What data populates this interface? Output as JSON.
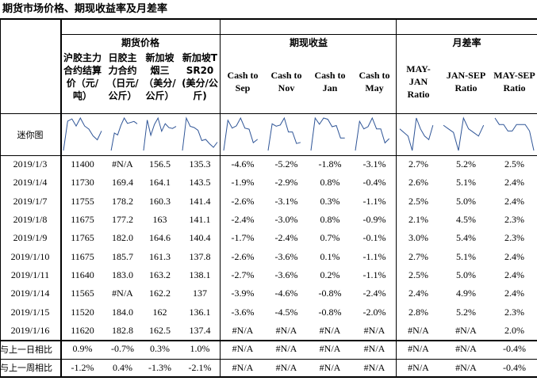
{
  "title": "期货市场价格、期现收益率及月差率",
  "groups": {
    "futures": "期货价格",
    "basis": "期现收益",
    "spread": "月差率"
  },
  "columns": [
    "沪胶主力合约结算价（元/吨）",
    "日胶主力合约（日元/公斤）",
    "新加坡烟三（美分/公斤）",
    "新加坡TSR20(美分/公斤)",
    "Cash to Sep",
    "Cash to Nov",
    "Cash to Jan",
    "Cash to May",
    "MAY-JAN Ratio",
    "JAN-SEP Ratio",
    "MAY-SEP Ratio"
  ],
  "sparkline_label": "迷你图",
  "rows": [
    {
      "date": "2019/1/3",
      "values": [
        "11400",
        "#N/A",
        "156.5",
        "135.3",
        "-4.6%",
        "-5.2%",
        "-1.8%",
        "-3.1%",
        "2.7%",
        "5.2%",
        "2.5%"
      ]
    },
    {
      "date": "2019/1/4",
      "values": [
        "11730",
        "169.4",
        "164.1",
        "143.5",
        "-1.9%",
        "-2.9%",
        "0.8%",
        "-0.4%",
        "2.6%",
        "5.1%",
        "2.4%"
      ]
    },
    {
      "date": "2019/1/7",
      "values": [
        "11755",
        "178.2",
        "160.3",
        "141.4",
        "-2.6%",
        "-3.1%",
        "0.3%",
        "-1.1%",
        "2.5%",
        "5.0%",
        "2.4%"
      ]
    },
    {
      "date": "2019/1/8",
      "values": [
        "11675",
        "177.2",
        "163",
        "141.1",
        "-2.4%",
        "-3.0%",
        "0.8%",
        "-0.9%",
        "2.1%",
        "4.5%",
        "2.3%"
      ]
    },
    {
      "date": "2019/1/9",
      "values": [
        "11765",
        "182.0",
        "164.6",
        "140.4",
        "-1.7%",
        "-2.4%",
        "0.7%",
        "-0.1%",
        "3.0%",
        "5.4%",
        "2.3%"
      ]
    },
    {
      "date": "2019/1/10",
      "values": [
        "11675",
        "185.7",
        "161.3",
        "137.8",
        "-2.6%",
        "-3.6%",
        "0.1%",
        "-1.1%",
        "2.7%",
        "5.1%",
        "2.4%"
      ]
    },
    {
      "date": "2019/1/11",
      "values": [
        "11640",
        "183.0",
        "163.2",
        "138.1",
        "-2.7%",
        "-3.6%",
        "0.2%",
        "-1.1%",
        "2.5%",
        "5.0%",
        "2.4%"
      ]
    },
    {
      "date": "2019/1/14",
      "values": [
        "11565",
        "#N/A",
        "162.2",
        "137",
        "-3.9%",
        "-4.6%",
        "-0.8%",
        "-2.4%",
        "2.4%",
        "4.9%",
        "2.4%"
      ]
    },
    {
      "date": "2019/1/15",
      "values": [
        "11520",
        "184.0",
        "162",
        "136.1",
        "-3.6%",
        "-4.5%",
        "-0.8%",
        "-2.0%",
        "2.8%",
        "5.2%",
        "2.3%"
      ]
    },
    {
      "date": "2019/1/16",
      "values": [
        "11620",
        "182.8",
        "162.5",
        "137.4",
        "#N/A",
        "#N/A",
        "#N/A",
        "#N/A",
        "#N/A",
        "#N/A",
        "2.0%"
      ]
    }
  ],
  "summary": [
    {
      "label": "与上一日相比",
      "values": [
        "0.9%",
        "-0.7%",
        "0.3%",
        "1.0%",
        "#N/A",
        "#N/A",
        "#N/A",
        "#N/A",
        "#N/A",
        "#N/A",
        "-0.4%"
      ]
    },
    {
      "label": "与上一周相比",
      "values": [
        "-1.2%",
        "0.4%",
        "-1.3%",
        "-2.1%",
        "#N/A",
        "#N/A",
        "#N/A",
        "#N/A",
        "#N/A",
        "#N/A",
        "-0.4%"
      ]
    }
  ],
  "colors": {
    "sparkline": "#2F5597",
    "grid": "#000000"
  }
}
